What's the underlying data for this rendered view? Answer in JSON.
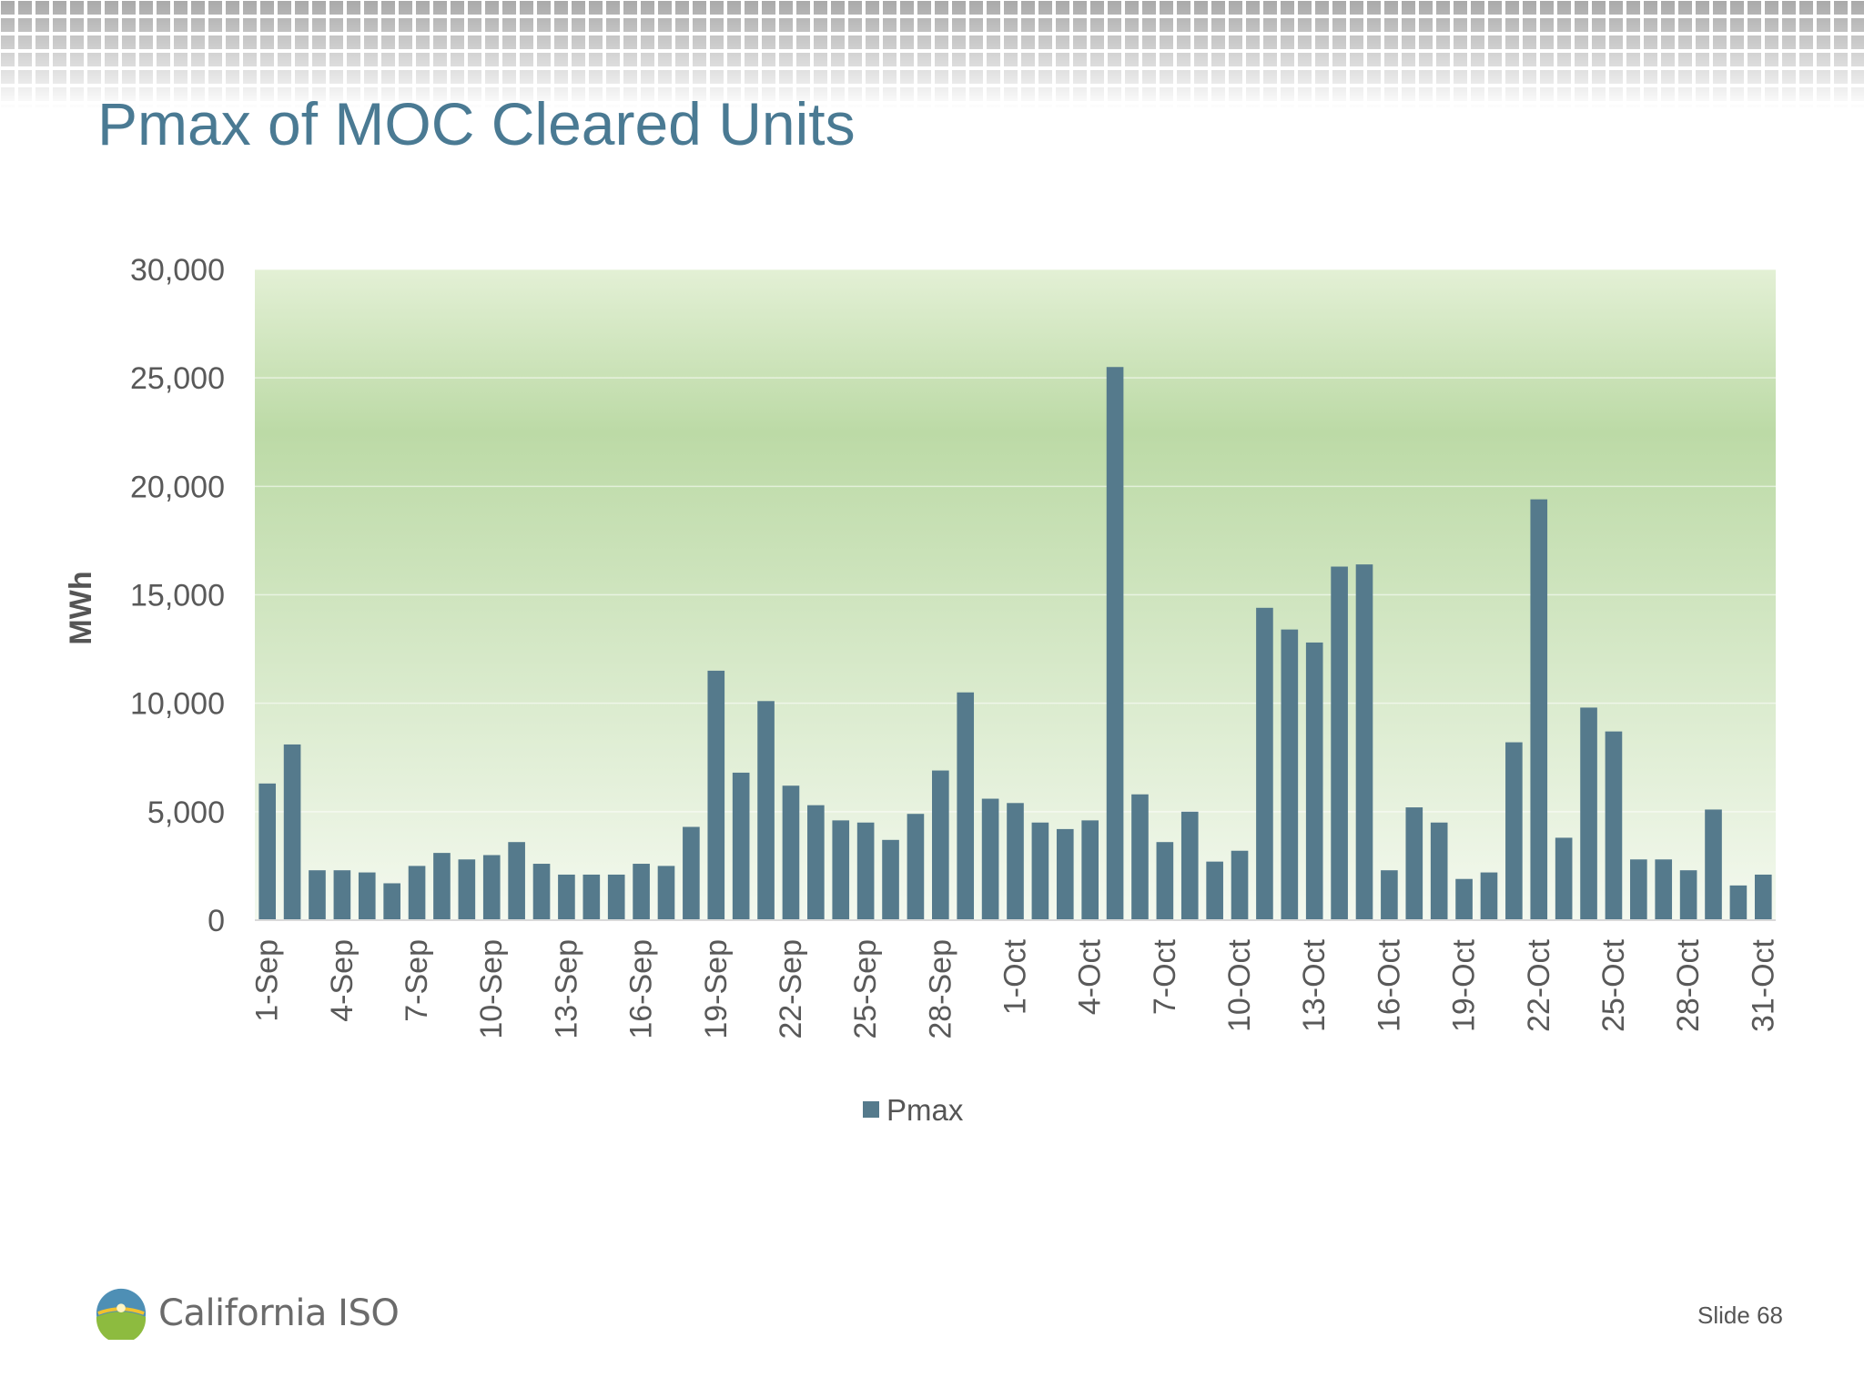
{
  "slide": {
    "title": "Pmax of MOC Cleared Units",
    "footer_org": "California ISO",
    "slide_number": "Slide 68"
  },
  "colors": {
    "title": "#4a7a93",
    "bar": "#557a8c",
    "plot_bg_top": "#e3f0d5",
    "plot_bg_mid": "#bcdaa6",
    "plot_bg_bottom": "#f4f9ef"
  },
  "icons": [
    "california-iso-logo-icon"
  ],
  "chart_data": {
    "type": "bar",
    "title": "",
    "xlabel": "",
    "ylabel": "MWh",
    "ylim": [
      0,
      30000
    ],
    "yticks": [
      0,
      5000,
      10000,
      15000,
      20000,
      25000,
      30000
    ],
    "ytick_labels": [
      "0",
      "5,000",
      "10,000",
      "15,000",
      "20,000",
      "25,000",
      "30,000"
    ],
    "grid": true,
    "legend": "bottom-center",
    "categories": [
      "1-Sep",
      "2-Sep",
      "3-Sep",
      "4-Sep",
      "5-Sep",
      "6-Sep",
      "7-Sep",
      "8-Sep",
      "9-Sep",
      "10-Sep",
      "11-Sep",
      "12-Sep",
      "13-Sep",
      "14-Sep",
      "15-Sep",
      "16-Sep",
      "17-Sep",
      "18-Sep",
      "19-Sep",
      "20-Sep",
      "21-Sep",
      "22-Sep",
      "23-Sep",
      "24-Sep",
      "25-Sep",
      "26-Sep",
      "27-Sep",
      "28-Sep",
      "29-Sep",
      "30-Sep",
      "1-Oct",
      "2-Oct",
      "3-Oct",
      "4-Oct",
      "5-Oct",
      "6-Oct",
      "7-Oct",
      "8-Oct",
      "9-Oct",
      "10-Oct",
      "11-Oct",
      "12-Oct",
      "13-Oct",
      "14-Oct",
      "15-Oct",
      "16-Oct",
      "17-Oct",
      "18-Oct",
      "19-Oct",
      "20-Oct",
      "21-Oct",
      "22-Oct",
      "23-Oct",
      "24-Oct",
      "25-Oct",
      "26-Oct",
      "27-Oct",
      "28-Oct",
      "29-Oct",
      "30-Oct",
      "31-Oct"
    ],
    "tick_labels": [
      "1-Sep",
      "4-Sep",
      "7-Sep",
      "10-Sep",
      "13-Sep",
      "16-Sep",
      "19-Sep",
      "22-Sep",
      "25-Sep",
      "28-Sep",
      "1-Oct",
      "4-Oct",
      "7-Oct",
      "10-Oct",
      "13-Oct",
      "16-Oct",
      "19-Oct",
      "22-Oct",
      "25-Oct",
      "28-Oct",
      "31-Oct"
    ],
    "series": [
      {
        "name": "Pmax",
        "values": [
          6300,
          8100,
          2300,
          2300,
          2200,
          1700,
          2500,
          3100,
          2800,
          3000,
          3600,
          2600,
          2100,
          2100,
          2100,
          2600,
          2500,
          4300,
          11500,
          6800,
          10100,
          6200,
          5300,
          4600,
          4500,
          3700,
          4900,
          6900,
          10500,
          5600,
          5400,
          4500,
          4200,
          4600,
          25500,
          5800,
          3600,
          5000,
          2700,
          3200,
          14400,
          13400,
          12800,
          16300,
          16400,
          2300,
          5200,
          4500,
          1900,
          2200,
          8200,
          19400,
          3800,
          9800,
          8700,
          2800,
          2800,
          2300,
          5100,
          1600,
          2100
        ]
      }
    ]
  }
}
